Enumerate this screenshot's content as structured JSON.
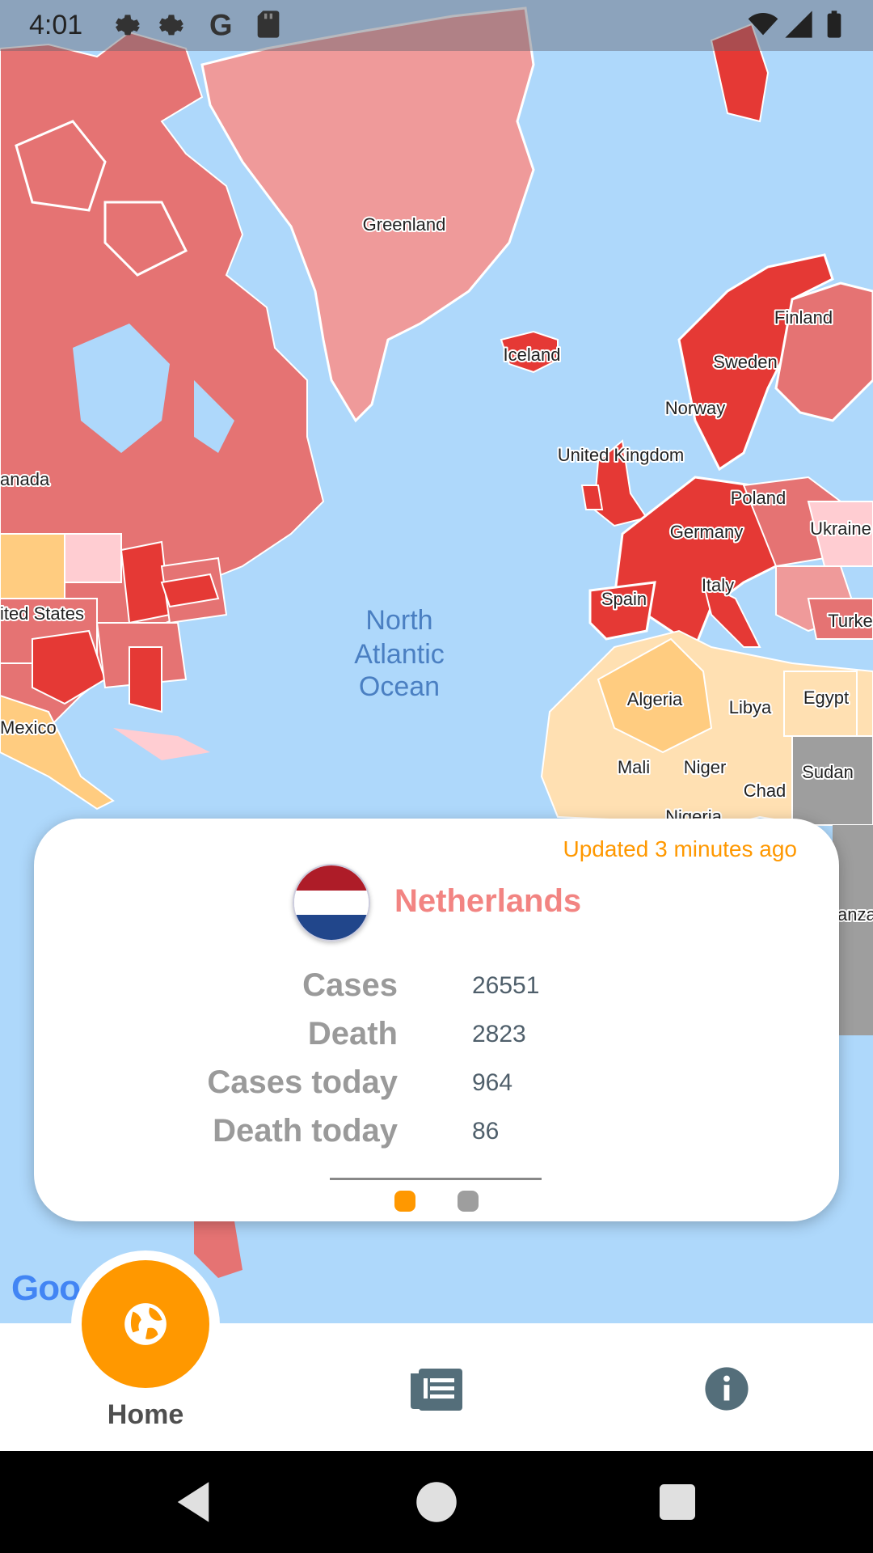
{
  "status_bar": {
    "time": "4:01",
    "icons": [
      "gear-icon",
      "gear-icon",
      "google-icon",
      "sd-card-icon",
      "wifi-icon",
      "signal-icon",
      "battery-icon"
    ]
  },
  "map": {
    "countries": [
      "Greenland",
      "Iceland",
      "Finland",
      "Sweden",
      "Norway",
      "United Kingdom",
      "Poland",
      "Ukraine",
      "Germany",
      "Italy",
      "Spain",
      "Turke",
      "Algeria",
      "Libya",
      "Egypt",
      "Mali",
      "Niger",
      "Chad",
      "Sudan",
      "Nigeria",
      "anada",
      "ited States",
      "Mexico",
      "anza"
    ],
    "ocean": [
      "North",
      "Atlantic",
      "Ocean"
    ],
    "watermark": "Goo",
    "colors": {
      "water": "#aed8fb",
      "high": "#e53935",
      "medium": "#e57373",
      "low": "#ef9a9a",
      "none_data": "#9e9e9e",
      "africa_light": "#ffe0b2",
      "africa_mid": "#ffcc80"
    }
  },
  "card": {
    "updated": "Updated 3 minutes ago",
    "country": "Netherlands",
    "stats": [
      {
        "label": "Cases",
        "value": "26551"
      },
      {
        "label": "Death",
        "value": "2823"
      },
      {
        "label": "Cases today",
        "value": "964"
      },
      {
        "label": "Death today",
        "value": "86"
      }
    ],
    "page_indicator": {
      "count": 2,
      "active": 0
    },
    "colors": {
      "accent": "#ff9800",
      "country": "#f28482",
      "inactive_dot": "#9e9e9e"
    }
  },
  "bottom_nav": {
    "home_label": "Home",
    "items": [
      "globe-icon",
      "news-icon",
      "info-icon"
    ],
    "colors": {
      "fab": "#ff9800",
      "icon": "#546e7a"
    }
  }
}
